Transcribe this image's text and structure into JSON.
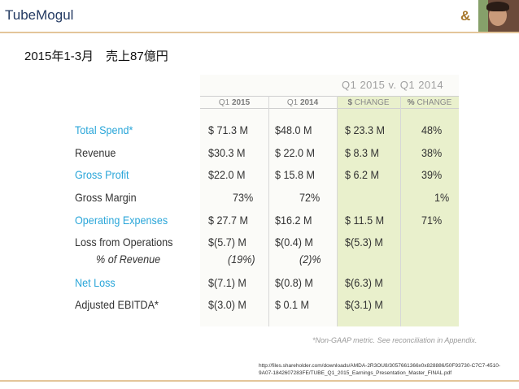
{
  "header": {
    "brand": "TubeMogul",
    "amp": "&",
    "avatar": "presenter-photo"
  },
  "subtitle": "2015年1-3月　売上87億円",
  "table": {
    "super_header": "Q1 2015  v. Q1 2014",
    "columns": [
      "Q1 2015",
      "Q1 2014",
      "$ CHANGE",
      "% CHANGE"
    ],
    "rows": [
      {
        "label": "Total Spend*",
        "q1_2015": "$ 71.3 M",
        "q1_2014": "$48.0 M",
        "change_usd": "$ 23.3 M",
        "change_pct": "48%",
        "highlight": true
      },
      {
        "label": "Revenue",
        "q1_2015": "$30.3 M",
        "q1_2014": "$ 22.0 M",
        "change_usd": "$  8.3 M",
        "change_pct": "38%",
        "highlight": false
      },
      {
        "label": "Gross Profit",
        "q1_2015": "$22.0 M",
        "q1_2014": "$ 15.8 M",
        "change_usd": "$  6.2 M",
        "change_pct": "39%",
        "highlight": true
      },
      {
        "label": "Gross Margin",
        "q1_2015": "73%",
        "q1_2014": "72%",
        "change_usd": "",
        "change_pct": "1%",
        "highlight": false
      },
      {
        "label": "Operating Expenses",
        "q1_2015": "$  27.7 M",
        "q1_2014": "$16.2 M",
        "change_usd": "$  11.5 M",
        "change_pct": "71%",
        "highlight": true
      },
      {
        "label": "Loss from Operations",
        "q1_2015": "$(5.7) M",
        "q1_2014": "$(0.4) M",
        "change_usd": "$(5.3) M",
        "change_pct": "",
        "highlight": false
      },
      {
        "label": "% of Revenue",
        "q1_2015": "(19%)",
        "q1_2014": "(2)%",
        "change_usd": "",
        "change_pct": "",
        "highlight": false
      },
      {
        "label": "Net Loss",
        "q1_2015": "$(7.1) M",
        "q1_2014": "$(0.8) M",
        "change_usd": "$(6.3) M",
        "change_pct": "",
        "highlight": true
      },
      {
        "label": "Adjusted EBITDA*",
        "q1_2015": "$(3.0) M",
        "q1_2014": "$   0.1 M",
        "change_usd": "$(3.1) M",
        "change_pct": "",
        "highlight": false
      }
    ],
    "footnote": "*Non-GAAP metric. See reconciliation in Appendix."
  },
  "source_url": "http://files.shareholder.com/downloads/AMDA-2R3OU8/3057661366x0x828886/50F93730-C7C7-4510-9A07-1842607283FE/TUBE_Q1_2015_Earnings_Presentation_Master_FINAL.pdf"
}
